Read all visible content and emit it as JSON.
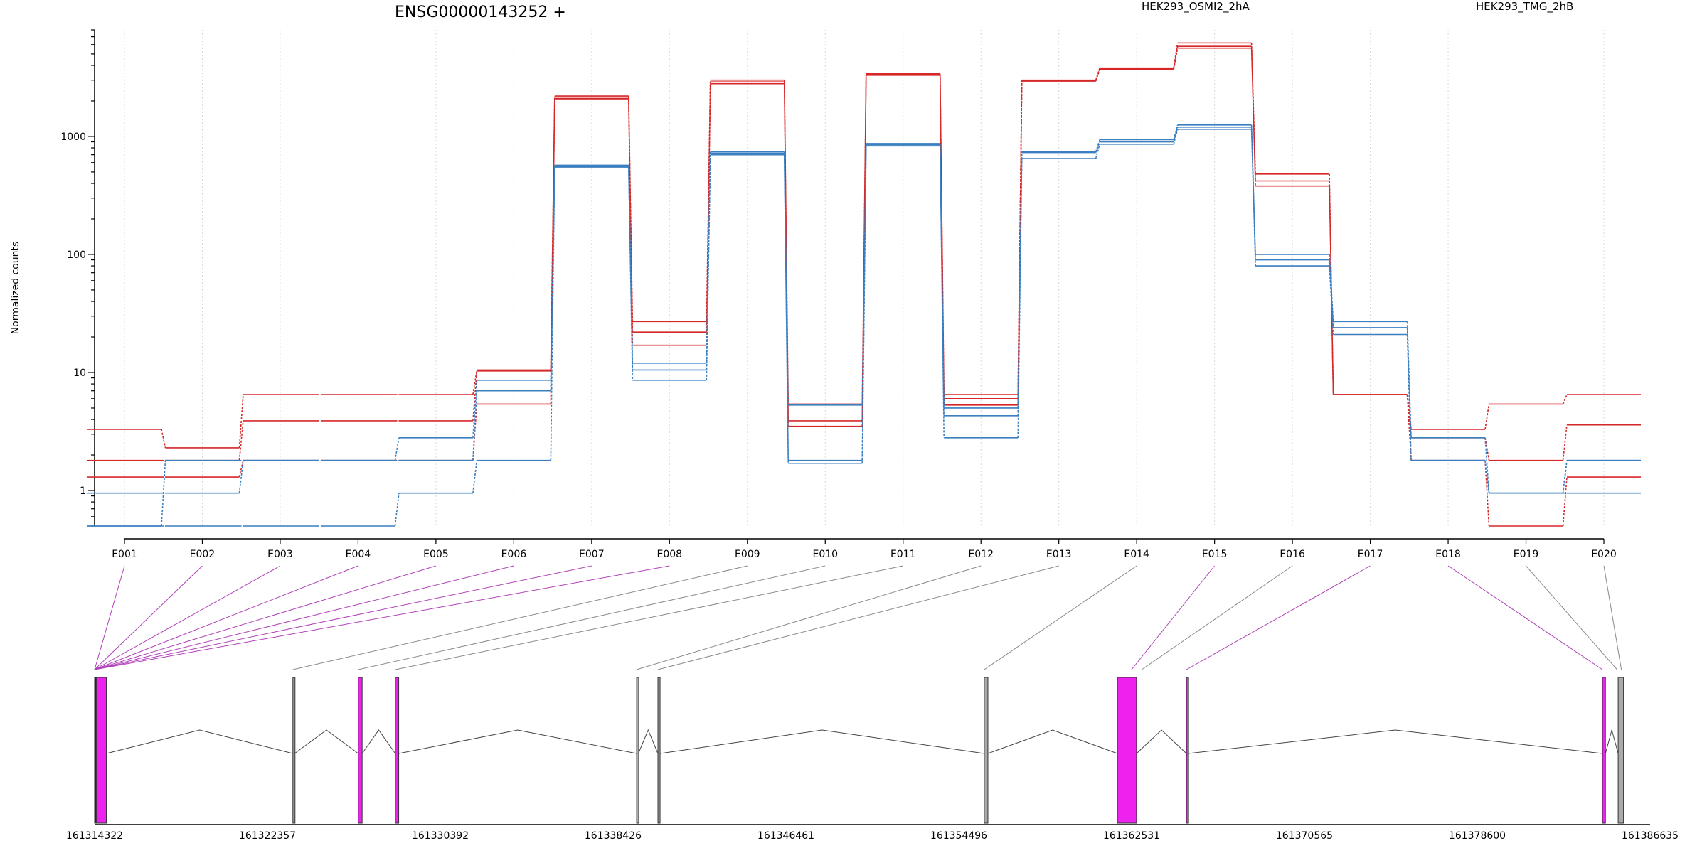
{
  "chart_data": {
    "type": "line",
    "title": "ENSG00000143252 +",
    "ylabel": "Normalized counts",
    "xlabel": "",
    "yscale": "log",
    "ylim": [
      0.5,
      8000
    ],
    "yticks": [
      1,
      10,
      100,
      1000
    ],
    "ytick_labels": [
      "1",
      "10",
      "100",
      "1000"
    ],
    "grid": "vertical dotted per exon",
    "legend": [
      {
        "name": "HEK293_OSMI2_2hA",
        "color": "#d62728",
        "position": "top-center"
      },
      {
        "name": "HEK293_TMG_2hB",
        "color": "#3a7fc0",
        "position": "top-right"
      }
    ],
    "categories": [
      "E001",
      "E002",
      "E003",
      "E004",
      "E005",
      "E006",
      "E007",
      "E008",
      "E009",
      "E010",
      "E011",
      "E012",
      "E013",
      "E014",
      "E015",
      "E016",
      "E017",
      "E018",
      "E019",
      "E020"
    ],
    "series": [
      {
        "group": "HEK293_OSMI2_2hA",
        "color": "#d62728",
        "values": [
          3.3,
          2.3,
          6.5,
          6.5,
          6.5,
          10.5,
          2200,
          27,
          3000,
          5.4,
          3400,
          6.5,
          3000,
          3800,
          6200,
          480,
          6.5,
          3.3,
          5.4,
          6.5
        ]
      },
      {
        "group": "HEK293_OSMI2_2hA",
        "color": "#d62728",
        "values": [
          1.8,
          1.8,
          3.9,
          3.9,
          3.9,
          10.3,
          2100,
          22,
          2900,
          3.9,
          3350,
          6.0,
          2950,
          3750,
          5800,
          420,
          6.5,
          2.8,
          1.8,
          3.6
        ]
      },
      {
        "group": "HEK293_OSMI2_2hA",
        "color": "#d62728",
        "values": [
          1.3,
          1.3,
          1.8,
          1.8,
          1.8,
          5.4,
          2050,
          17,
          2800,
          3.5,
          3300,
          5.3,
          2950,
          3700,
          5600,
          380,
          6.5,
          1.8,
          0.5,
          1.3
        ]
      },
      {
        "group": "HEK293_TMG_2hB",
        "color": "#3a7fc0",
        "values": [
          0.5,
          1.8,
          1.8,
          1.8,
          2.8,
          8.6,
          570,
          12,
          740,
          5.3,
          870,
          5.0,
          740,
          940,
          1250,
          100,
          27,
          2.8,
          0.95,
          1.8
        ]
      },
      {
        "group": "HEK293_TMG_2hB",
        "color": "#3a7fc0",
        "values": [
          0.95,
          0.95,
          1.8,
          1.8,
          1.8,
          7.0,
          560,
          10.5,
          720,
          1.8,
          850,
          4.3,
          730,
          900,
          1200,
          90,
          24,
          1.8,
          0.95,
          1.8
        ]
      },
      {
        "group": "HEK293_TMG_2hB",
        "color": "#3a7fc0",
        "values": [
          0.5,
          0.5,
          0.5,
          0.5,
          0.95,
          1.8,
          550,
          8.6,
          700,
          1.7,
          830,
          2.8,
          650,
          860,
          1150,
          80,
          21,
          1.8,
          0.95,
          0.95
        ]
      }
    ],
    "gene_model": {
      "coordinates": [
        "161314322",
        "161322357",
        "161330392",
        "161338426",
        "161346461",
        "161354496",
        "161362531",
        "161370565",
        "161378600",
        "161386635"
      ],
      "coord_range": [
        161314322,
        161386635
      ],
      "exon_spans": [
        [
          161314322,
          161314870
        ],
        [
          161314340,
          161314360
        ],
        [
          161314360,
          161314380
        ],
        [
          161314380,
          161314400
        ],
        [
          161314400,
          161314420
        ],
        [
          161314420,
          161314440
        ],
        [
          161314440,
          161314460
        ],
        [
          161323540,
          161323640
        ],
        [
          161326580,
          161326760
        ],
        [
          161328300,
          161328460
        ],
        [
          161339520,
          161339600
        ],
        [
          161340510,
          161340610
        ],
        [
          161355680,
          161355850
        ],
        [
          161361870,
          161362760
        ],
        [
          161362760,
          161362810
        ],
        [
          161362810,
          161362860
        ],
        [
          161365080,
          161365160
        ],
        [
          161384420,
          161384560
        ],
        [
          161385100,
          161385250
        ],
        [
          161385250,
          161385380
        ]
      ],
      "exon_connectors": [
        {
          "exon": "E001",
          "start": 161314322
        },
        {
          "exon": "E002",
          "start": 161314322
        },
        {
          "exon": "E003",
          "start": 161314322
        },
        {
          "exon": "E004",
          "start": 161314322
        },
        {
          "exon": "E005",
          "start": 161314322
        },
        {
          "exon": "E006",
          "start": 161314322
        },
        {
          "exon": "E007",
          "start": 161314322
        },
        {
          "exon": "E008",
          "start": 161314322
        },
        {
          "exon": "E009",
          "start": 161323540
        },
        {
          "exon": "E010",
          "start": 161326580
        },
        {
          "exon": "E011",
          "start": 161328300
        },
        {
          "exon": "E012",
          "start": 161339520
        },
        {
          "exon": "E013",
          "start": 161340510
        },
        {
          "exon": "E014",
          "start": 161355680
        },
        {
          "exon": "E015",
          "start": 161362530
        },
        {
          "exon": "E016",
          "start": 161363000
        },
        {
          "exon": "E017",
          "start": 161365080
        },
        {
          "exon": "E018",
          "start": 161384420
        },
        {
          "exon": "E019",
          "start": 161385100
        },
        {
          "exon": "E020",
          "start": 161385300
        }
      ],
      "highlight_exons": [
        "E001",
        "E002",
        "E003",
        "E004",
        "E005",
        "E006",
        "E007",
        "E008",
        "E015",
        "E017",
        "E018"
      ],
      "exons": [
        {
          "start": 161314322,
          "end": 161314400,
          "color": "#222222"
        },
        {
          "start": 161314400,
          "end": 161314870,
          "color": "#ee22ee"
        },
        {
          "start": 161323540,
          "end": 161323620,
          "color": "#aaaaaa"
        },
        {
          "start": 161326580,
          "end": 161326760,
          "color": "#ee22ee"
        },
        {
          "start": 161328300,
          "end": 161328460,
          "color": "#ee22ee"
        },
        {
          "start": 161339520,
          "end": 161339600,
          "color": "#aaaaaa"
        },
        {
          "start": 161340510,
          "end": 161340610,
          "color": "#aaaaaa"
        },
        {
          "start": 161355680,
          "end": 161355850,
          "color": "#aaaaaa"
        },
        {
          "start": 161361870,
          "end": 161362760,
          "color": "#ee22ee"
        },
        {
          "start": 161365080,
          "end": 161365160,
          "color": "#ee22ee"
        },
        {
          "start": 161384420,
          "end": 161384560,
          "color": "#ee22ee"
        },
        {
          "start": 161385150,
          "end": 161385400,
          "color": "#aaaaaa"
        }
      ],
      "introns": [
        [
          161314870,
          161323540
        ],
        [
          161323620,
          161326580
        ],
        [
          161326760,
          161328300
        ],
        [
          161328460,
          161339520
        ],
        [
          161339600,
          161340510
        ],
        [
          161340610,
          161355680
        ],
        [
          161355850,
          161361870
        ],
        [
          161362760,
          161365080
        ],
        [
          161365160,
          161384420
        ],
        [
          161384560,
          161385150
        ]
      ]
    }
  }
}
